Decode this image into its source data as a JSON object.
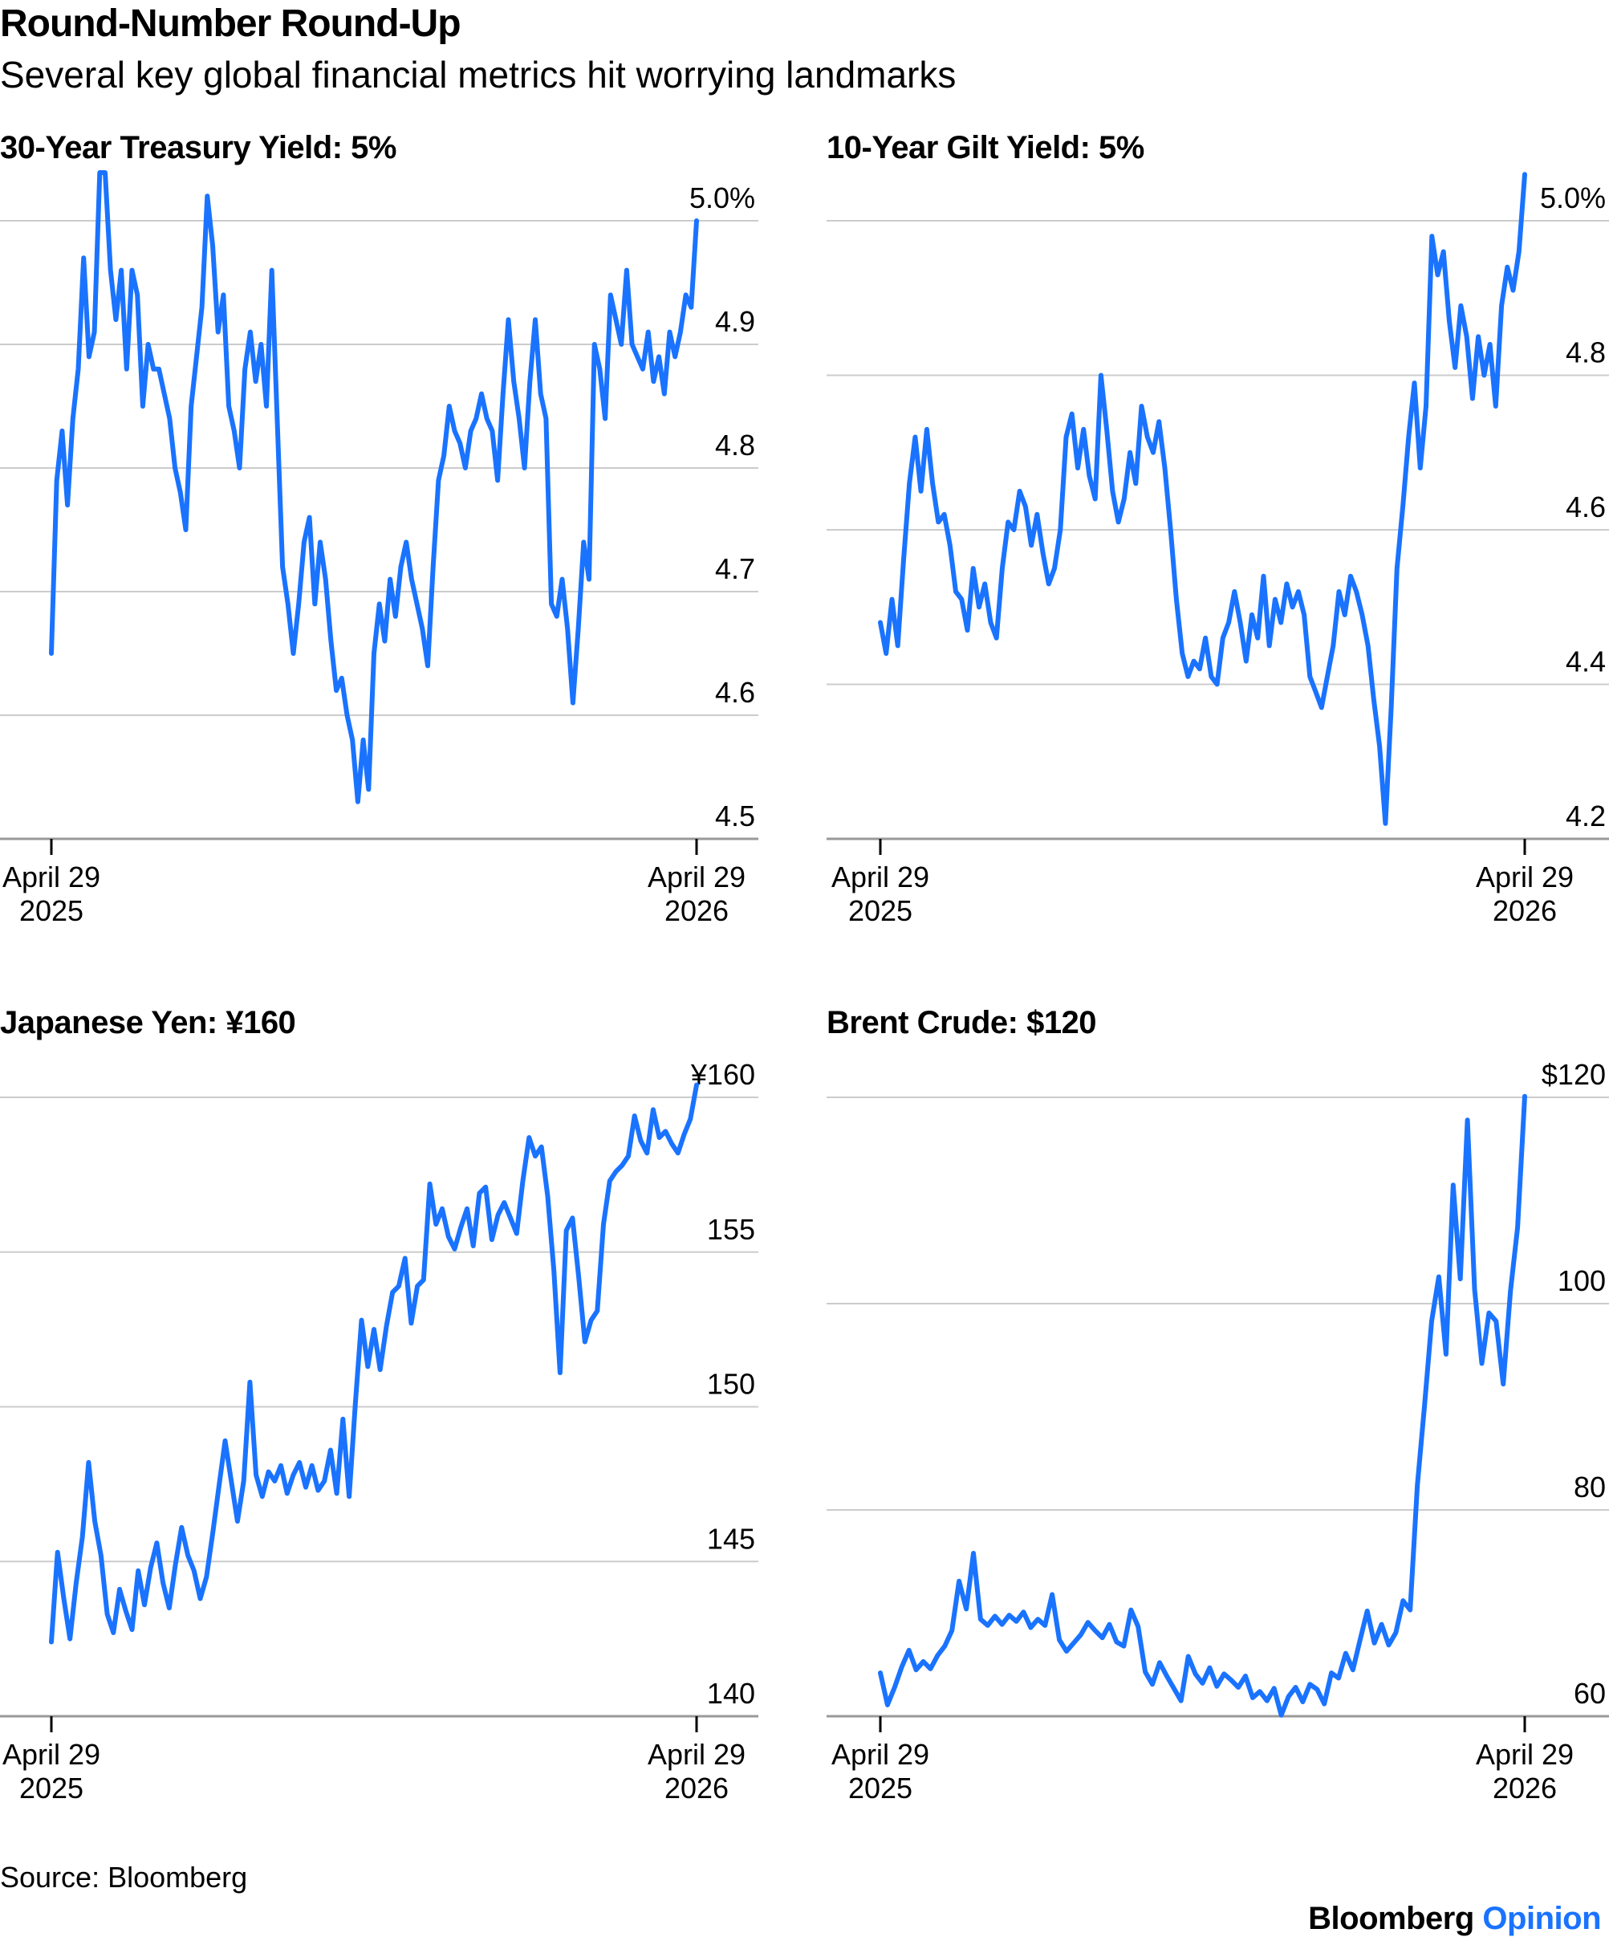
{
  "header": {
    "title": "Round-Number Round-Up",
    "subtitle": "Several key global financial metrics hit worrying landmarks"
  },
  "footer": {
    "source": "Source: Bloomberg",
    "brand_main": "Bloomberg",
    "brand_sub": "Opinion"
  },
  "colors": {
    "line": "#1a73ff",
    "grid": "#cccccc",
    "axis": "#999999"
  },
  "chart_data": [
    {
      "type": "line",
      "title": "30-Year Treasury Yield: 5%",
      "x_start_label": [
        "April 29",
        "2025"
      ],
      "x_end_label": [
        "April 29",
        "2026"
      ],
      "y_ticks": [
        4.5,
        4.6,
        4.7,
        4.8,
        4.9,
        5.0
      ],
      "y_tick_labels": [
        "4.5",
        "4.6",
        "4.7",
        "4.8",
        "4.9",
        "5.0%"
      ],
      "ylim": [
        4.5,
        5.0
      ],
      "grid": true,
      "values": [
        4.65,
        4.79,
        4.83,
        4.77,
        4.84,
        4.88,
        4.97,
        4.89,
        4.91,
        5.04,
        5.04,
        4.96,
        4.92,
        4.96,
        4.88,
        4.96,
        4.94,
        4.85,
        4.9,
        4.88,
        4.88,
        4.86,
        4.84,
        4.8,
        4.78,
        4.75,
        4.85,
        4.89,
        4.93,
        5.02,
        4.98,
        4.91,
        4.94,
        4.85,
        4.83,
        4.8,
        4.88,
        4.91,
        4.87,
        4.9,
        4.85,
        4.96,
        4.84,
        4.72,
        4.69,
        4.65,
        4.69,
        4.74,
        4.76,
        4.69,
        4.74,
        4.71,
        4.66,
        4.62,
        4.63,
        4.6,
        4.58,
        4.53,
        4.58,
        4.54,
        4.65,
        4.69,
        4.66,
        4.71,
        4.68,
        4.72,
        4.74,
        4.71,
        4.69,
        4.67,
        4.64,
        4.72,
        4.79,
        4.81,
        4.85,
        4.83,
        4.82,
        4.8,
        4.83,
        4.84,
        4.86,
        4.84,
        4.83,
        4.79,
        4.86,
        4.92,
        4.87,
        4.84,
        4.8,
        4.87,
        4.92,
        4.86,
        4.84,
        4.69,
        4.68,
        4.71,
        4.67,
        4.61,
        4.67,
        4.74,
        4.71,
        4.9,
        4.88,
        4.84,
        4.94,
        4.92,
        4.9,
        4.96,
        4.9,
        4.89,
        4.88,
        4.91,
        4.87,
        4.89,
        4.86,
        4.91,
        4.89,
        4.91,
        4.94,
        4.93,
        5.0
      ]
    },
    {
      "type": "line",
      "title": "10-Year Gilt Yield: 5%",
      "x_start_label": [
        "April 29",
        "2025"
      ],
      "x_end_label": [
        "April 29",
        "2026"
      ],
      "y_ticks": [
        4.2,
        4.4,
        4.6,
        4.8,
        5.0
      ],
      "y_tick_labels": [
        "4.2",
        "4.4",
        "4.6",
        "4.8",
        "5.0%"
      ],
      "ylim": [
        4.2,
        5.0
      ],
      "grid": true,
      "values": [
        4.48,
        4.44,
        4.51,
        4.45,
        4.56,
        4.66,
        4.72,
        4.65,
        4.73,
        4.66,
        4.61,
        4.62,
        4.58,
        4.52,
        4.51,
        4.47,
        4.55,
        4.5,
        4.53,
        4.48,
        4.46,
        4.55,
        4.61,
        4.6,
        4.65,
        4.63,
        4.58,
        4.62,
        4.57,
        4.53,
        4.55,
        4.6,
        4.72,
        4.75,
        4.68,
        4.73,
        4.67,
        4.64,
        4.8,
        4.73,
        4.65,
        4.61,
        4.64,
        4.7,
        4.66,
        4.76,
        4.72,
        4.7,
        4.74,
        4.68,
        4.6,
        4.51,
        4.44,
        4.41,
        4.43,
        4.42,
        4.46,
        4.41,
        4.4,
        4.46,
        4.48,
        4.52,
        4.48,
        4.43,
        4.49,
        4.46,
        4.54,
        4.45,
        4.51,
        4.48,
        4.53,
        4.5,
        4.52,
        4.49,
        4.41,
        4.39,
        4.37,
        4.41,
        4.45,
        4.52,
        4.49,
        4.54,
        4.52,
        4.49,
        4.45,
        4.38,
        4.32,
        4.22,
        4.37,
        4.55,
        4.63,
        4.72,
        4.79,
        4.68,
        4.76,
        4.98,
        4.93,
        4.96,
        4.87,
        4.81,
        4.89,
        4.85,
        4.77,
        4.85,
        4.8,
        4.84,
        4.76,
        4.89,
        4.94,
        4.91,
        4.96,
        5.06
      ]
    },
    {
      "type": "line",
      "title": "Japanese Yen: ¥160",
      "x_start_label": [
        "April 29",
        "2025"
      ],
      "x_end_label": [
        "April 29",
        "2026"
      ],
      "y_ticks": [
        140,
        145,
        150,
        155,
        160
      ],
      "y_tick_labels": [
        "140",
        "145",
        "150",
        "155",
        "¥160"
      ],
      "ylim": [
        140,
        160
      ],
      "grid": true,
      "values": [
        142.4,
        145.3,
        143.8,
        142.5,
        144.3,
        145.8,
        148.2,
        146.3,
        145.2,
        143.3,
        142.7,
        144.1,
        143.4,
        142.8,
        144.7,
        143.6,
        144.8,
        145.6,
        144.3,
        143.5,
        144.9,
        146.1,
        145.2,
        144.7,
        143.8,
        144.5,
        145.9,
        147.4,
        148.9,
        147.6,
        146.3,
        147.6,
        150.8,
        147.8,
        147.1,
        147.9,
        147.6,
        148.1,
        147.2,
        147.8,
        148.2,
        147.4,
        148.1,
        147.3,
        147.6,
        148.6,
        147.2,
        149.6,
        147.1,
        150.1,
        152.8,
        151.3,
        152.5,
        151.2,
        152.6,
        153.7,
        153.9,
        154.8,
        152.7,
        153.9,
        154.1,
        157.2,
        155.9,
        156.4,
        155.5,
        155.1,
        155.8,
        156.4,
        155.2,
        156.9,
        157.1,
        155.4,
        156.2,
        156.6,
        156.1,
        155.6,
        157.3,
        158.7,
        158.1,
        158.4,
        156.8,
        154.4,
        151.1,
        155.7,
        156.1,
        154.2,
        152.1,
        152.8,
        153.1,
        155.9,
        157.3,
        157.6,
        157.8,
        158.1,
        159.4,
        158.6,
        158.2,
        159.6,
        158.7,
        158.9,
        158.5,
        158.2,
        158.8,
        159.3,
        160.4
      ]
    },
    {
      "type": "line",
      "title": "Brent Crude: $120",
      "x_start_label": [
        "April 29",
        "2025"
      ],
      "x_end_label": [
        "April 29",
        "2026"
      ],
      "y_ticks": [
        60,
        80,
        100,
        120
      ],
      "y_tick_labels": [
        "60",
        "80",
        "100",
        "$120"
      ],
      "ylim": [
        60,
        120
      ],
      "grid": true,
      "values": [
        64.2,
        61.1,
        62.8,
        64.8,
        66.4,
        64.5,
        65.3,
        64.6,
        65.9,
        66.8,
        68.3,
        73.1,
        70.4,
        75.8,
        69.4,
        68.8,
        69.7,
        68.9,
        69.8,
        69.2,
        70.1,
        68.6,
        69.4,
        68.8,
        71.8,
        67.4,
        66.3,
        67.1,
        67.9,
        69.1,
        68.3,
        67.6,
        68.9,
        67.2,
        66.8,
        70.3,
        68.7,
        64.3,
        63.1,
        65.2,
        63.9,
        62.7,
        61.5,
        65.8,
        64.1,
        63.2,
        64.7,
        62.9,
        64.1,
        63.5,
        62.8,
        63.9,
        61.8,
        62.4,
        61.5,
        62.7,
        60.1,
        61.9,
        62.8,
        61.4,
        63.1,
        62.6,
        61.2,
        64.2,
        63.7,
        66.1,
        64.5,
        67.4,
        70.2,
        67.1,
        68.9,
        66.9,
        68.1,
        71.2,
        70.3,
        82.4,
        90.1,
        98.3,
        102.6,
        95.1,
        111.5,
        102.4,
        117.8,
        101.4,
        94.2,
        99.1,
        98.3,
        92.2,
        101.2,
        107.4,
        120.1
      ]
    }
  ]
}
